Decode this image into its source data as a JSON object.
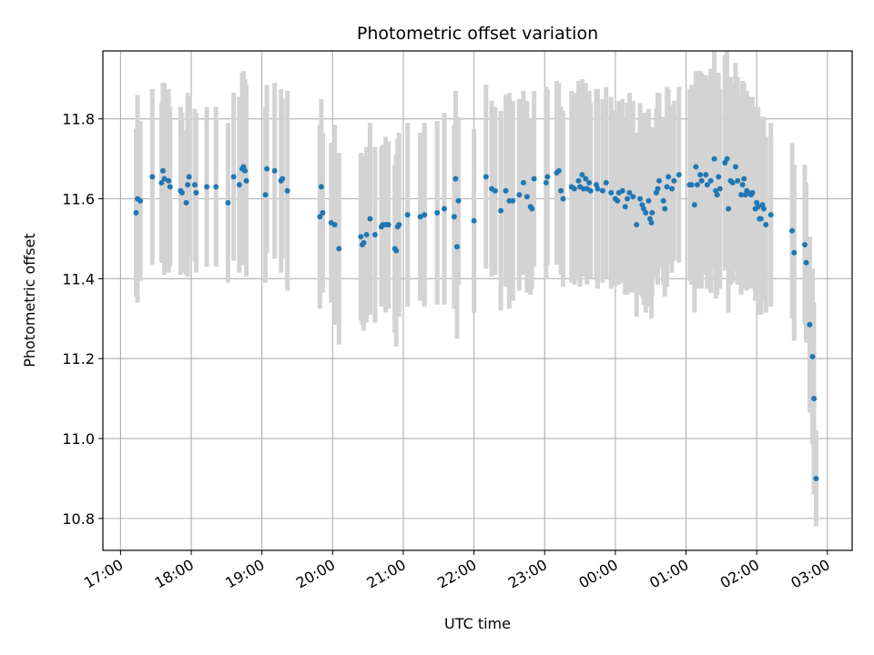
{
  "chart_data": {
    "type": "scatter",
    "title": "Photometric offset variation",
    "xlabel": "UTC time",
    "ylabel": "Photometric offset",
    "grid": true,
    "x_unit": "hours since 17:00 UTC",
    "xlim": [
      -0.25,
      10.35
    ],
    "ylim": [
      10.72,
      11.97
    ],
    "x_ticks": [
      {
        "value": 0,
        "label": "17:00"
      },
      {
        "value": 1,
        "label": "18:00"
      },
      {
        "value": 2,
        "label": "19:00"
      },
      {
        "value": 3,
        "label": "20:00"
      },
      {
        "value": 4,
        "label": "21:00"
      },
      {
        "value": 5,
        "label": "22:00"
      },
      {
        "value": 6,
        "label": "23:00"
      },
      {
        "value": 7,
        "label": "00:00"
      },
      {
        "value": 8,
        "label": "01:00"
      },
      {
        "value": 9,
        "label": "02:00"
      },
      {
        "value": 10,
        "label": "03:00"
      }
    ],
    "y_ticks": [
      {
        "value": 10.8,
        "label": "10.8"
      },
      {
        "value": 11.0,
        "label": "11.0"
      },
      {
        "value": 11.2,
        "label": "11.2"
      },
      {
        "value": 11.4,
        "label": "11.4"
      },
      {
        "value": 11.6,
        "label": "11.6"
      },
      {
        "value": 11.8,
        "label": "11.8"
      }
    ],
    "marker_color": "#1f77b4",
    "errorbar_color": "#d3d3d3",
    "series": [
      {
        "name": "offset",
        "points": [
          [
            0.22,
            11.565,
            0.21
          ],
          [
            0.24,
            11.6,
            0.26
          ],
          [
            0.28,
            11.595,
            0.2
          ],
          [
            0.45,
            11.655,
            0.22
          ],
          [
            0.58,
            11.64,
            0.2
          ],
          [
            0.6,
            11.67,
            0.22
          ],
          [
            0.62,
            11.65,
            0.24
          ],
          [
            0.68,
            11.645,
            0.23
          ],
          [
            0.7,
            11.63,
            0.2
          ],
          [
            0.85,
            11.62,
            0.21
          ],
          [
            0.87,
            11.615,
            0.2
          ],
          [
            0.93,
            11.59,
            0.18
          ],
          [
            0.95,
            11.635,
            0.23
          ],
          [
            0.97,
            11.655,
            0.2
          ],
          [
            1.05,
            11.635,
            0.19
          ],
          [
            1.07,
            11.615,
            0.2
          ],
          [
            1.22,
            11.63,
            0.2
          ],
          [
            1.35,
            11.63,
            0.2
          ],
          [
            1.52,
            11.59,
            0.2
          ],
          [
            1.6,
            11.655,
            0.21
          ],
          [
            1.68,
            11.635,
            0.22
          ],
          [
            1.72,
            11.675,
            0.24
          ],
          [
            1.74,
            11.68,
            0.24
          ],
          [
            1.76,
            11.67,
            0.23
          ],
          [
            1.78,
            11.645,
            0.24
          ],
          [
            2.05,
            11.61,
            0.22
          ],
          [
            2.07,
            11.675,
            0.21
          ],
          [
            2.18,
            11.67,
            0.22
          ],
          [
            2.27,
            11.645,
            0.23
          ],
          [
            2.29,
            11.65,
            0.2
          ],
          [
            2.36,
            11.62,
            0.25
          ],
          [
            2.82,
            11.555,
            0.23
          ],
          [
            2.84,
            11.63,
            0.22
          ],
          [
            2.86,
            11.565,
            0.2
          ],
          [
            2.98,
            11.54,
            0.2
          ],
          [
            3.03,
            11.535,
            0.25
          ],
          [
            3.09,
            11.475,
            0.24
          ],
          [
            3.4,
            11.505,
            0.21
          ],
          [
            3.42,
            11.485,
            0.2
          ],
          [
            3.44,
            11.49,
            0.22
          ],
          [
            3.48,
            11.51,
            0.22
          ],
          [
            3.53,
            11.55,
            0.24
          ],
          [
            3.6,
            11.51,
            0.22
          ],
          [
            3.69,
            11.53,
            0.2
          ],
          [
            3.71,
            11.535,
            0.2
          ],
          [
            3.75,
            11.535,
            0.22
          ],
          [
            3.79,
            11.535,
            0.21
          ],
          [
            3.88,
            11.475,
            0.21
          ],
          [
            3.9,
            11.47,
            0.24
          ],
          [
            3.92,
            11.53,
            0.22
          ],
          [
            3.94,
            11.535,
            0.23
          ],
          [
            4.06,
            11.56,
            0.23
          ],
          [
            4.24,
            11.555,
            0.21
          ],
          [
            4.3,
            11.56,
            0.23
          ],
          [
            4.48,
            11.565,
            0.23
          ],
          [
            4.58,
            11.575,
            0.24
          ],
          [
            4.72,
            11.555,
            0.23
          ],
          [
            4.74,
            11.65,
            0.22
          ],
          [
            4.76,
            11.48,
            0.23
          ],
          [
            4.78,
            11.595,
            0.21
          ],
          [
            5.0,
            11.545,
            0.23
          ],
          [
            5.17,
            11.655,
            0.23
          ],
          [
            5.25,
            11.625,
            0.22
          ],
          [
            5.3,
            11.62,
            0.21
          ],
          [
            5.38,
            11.57,
            0.25
          ],
          [
            5.45,
            11.62,
            0.24
          ],
          [
            5.5,
            11.595,
            0.27
          ],
          [
            5.55,
            11.595,
            0.25
          ],
          [
            5.64,
            11.61,
            0.24
          ],
          [
            5.7,
            11.64,
            0.23
          ],
          [
            5.75,
            11.605,
            0.24
          ],
          [
            5.8,
            11.58,
            0.22
          ],
          [
            5.82,
            11.575,
            0.2
          ],
          [
            5.85,
            11.65,
            0.22
          ],
          [
            6.02,
            11.64,
            0.24
          ],
          [
            6.04,
            11.655,
            0.22
          ],
          [
            6.17,
            11.665,
            0.23
          ],
          [
            6.2,
            11.67,
            0.22
          ],
          [
            6.23,
            11.62,
            0.21
          ],
          [
            6.26,
            11.6,
            0.22
          ],
          [
            6.38,
            11.63,
            0.24
          ],
          [
            6.42,
            11.625,
            0.24
          ],
          [
            6.48,
            11.645,
            0.25
          ],
          [
            6.5,
            11.63,
            0.25
          ],
          [
            6.53,
            11.66,
            0.24
          ],
          [
            6.55,
            11.625,
            0.22
          ],
          [
            6.58,
            11.65,
            0.24
          ],
          [
            6.6,
            11.625,
            0.24
          ],
          [
            6.63,
            11.64,
            0.23
          ],
          [
            6.65,
            11.62,
            0.22
          ],
          [
            6.73,
            11.635,
            0.24
          ],
          [
            6.75,
            11.625,
            0.25
          ],
          [
            6.82,
            11.62,
            0.23
          ],
          [
            6.87,
            11.64,
            0.24
          ],
          [
            6.94,
            11.615,
            0.24
          ],
          [
            7.0,
            11.6,
            0.22
          ],
          [
            7.03,
            11.595,
            0.21
          ],
          [
            7.05,
            11.615,
            0.23
          ],
          [
            7.1,
            11.62,
            0.23
          ],
          [
            7.14,
            11.58,
            0.22
          ],
          [
            7.17,
            11.6,
            0.24
          ],
          [
            7.2,
            11.615,
            0.25
          ],
          [
            7.25,
            11.605,
            0.24
          ],
          [
            7.3,
            11.535,
            0.23
          ],
          [
            7.35,
            11.6,
            0.24
          ],
          [
            7.38,
            11.585,
            0.23
          ],
          [
            7.4,
            11.575,
            0.24
          ],
          [
            7.43,
            11.565,
            0.25
          ],
          [
            7.47,
            11.595,
            0.23
          ],
          [
            7.49,
            11.55,
            0.22
          ],
          [
            7.51,
            11.54,
            0.24
          ],
          [
            7.52,
            11.565,
            0.21
          ],
          [
            7.58,
            11.615,
            0.21
          ],
          [
            7.6,
            11.625,
            0.24
          ],
          [
            7.62,
            11.645,
            0.22
          ],
          [
            7.68,
            11.595,
            0.21
          ],
          [
            7.7,
            11.575,
            0.22
          ],
          [
            7.73,
            11.63,
            0.25
          ],
          [
            7.75,
            11.655,
            0.22
          ],
          [
            7.8,
            11.625,
            0.21
          ],
          [
            7.83,
            11.645,
            0.2
          ],
          [
            7.9,
            11.66,
            0.22
          ],
          [
            8.05,
            11.635,
            0.24
          ],
          [
            8.08,
            11.635,
            0.25
          ],
          [
            8.12,
            11.585,
            0.27
          ],
          [
            8.14,
            11.68,
            0.24
          ],
          [
            8.16,
            11.635,
            0.26
          ],
          [
            8.2,
            11.66,
            0.26
          ],
          [
            8.22,
            11.645,
            0.27
          ],
          [
            8.28,
            11.66,
            0.25
          ],
          [
            8.3,
            11.635,
            0.26
          ],
          [
            8.35,
            11.645,
            0.28
          ],
          [
            8.4,
            11.7,
            0.27
          ],
          [
            8.42,
            11.62,
            0.27
          ],
          [
            8.44,
            11.61,
            0.25
          ],
          [
            8.46,
            11.655,
            0.26
          ],
          [
            8.48,
            11.625,
            0.25
          ],
          [
            8.55,
            11.69,
            0.27
          ],
          [
            8.58,
            11.7,
            0.27
          ],
          [
            8.6,
            11.575,
            0.26
          ],
          [
            8.63,
            11.645,
            0.26
          ],
          [
            8.66,
            11.64,
            0.25
          ],
          [
            8.7,
            11.68,
            0.26
          ],
          [
            8.73,
            11.645,
            0.26
          ],
          [
            8.78,
            11.61,
            0.25
          ],
          [
            8.8,
            11.635,
            0.26
          ],
          [
            8.82,
            11.65,
            0.24
          ],
          [
            8.84,
            11.61,
            0.22
          ],
          [
            8.86,
            11.62,
            0.25
          ],
          [
            8.88,
            11.615,
            0.24
          ],
          [
            8.92,
            11.61,
            0.23
          ],
          [
            8.94,
            11.615,
            0.24
          ],
          [
            8.98,
            11.575,
            0.23
          ],
          [
            9.0,
            11.59,
            0.24
          ],
          [
            9.02,
            11.58,
            0.25
          ],
          [
            9.04,
            11.55,
            0.24
          ],
          [
            9.06,
            11.55,
            0.24
          ],
          [
            9.08,
            11.585,
            0.22
          ],
          [
            9.1,
            11.575,
            0.23
          ],
          [
            9.13,
            11.535,
            0.22
          ],
          [
            9.2,
            11.56,
            0.23
          ],
          [
            9.5,
            11.52,
            0.22
          ],
          [
            9.53,
            11.465,
            0.22
          ],
          [
            9.68,
            11.485,
            0.2
          ],
          [
            9.7,
            11.44,
            0.2
          ],
          [
            9.75,
            11.285,
            0.22
          ],
          [
            9.79,
            11.205,
            0.22
          ],
          [
            9.81,
            11.1,
            0.24
          ],
          [
            9.84,
            10.9,
            0.12
          ]
        ]
      }
    ]
  }
}
